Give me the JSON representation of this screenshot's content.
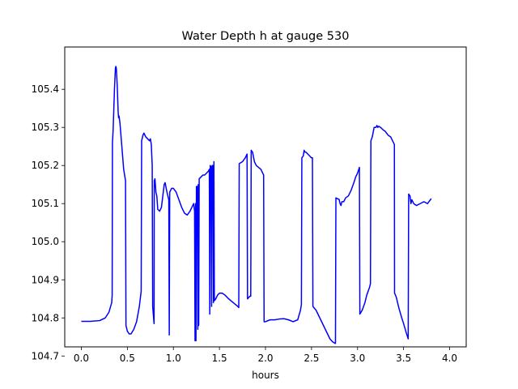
{
  "chart_data": {
    "type": "line",
    "title": "Water Depth h at gauge 530",
    "xlabel": "hours",
    "ylabel": "",
    "xlim": [
      -0.18,
      4.18
    ],
    "ylim": [
      104.724,
      105.511
    ],
    "x_ticks": [
      0.0,
      0.5,
      1.0,
      1.5,
      2.0,
      2.5,
      3.0,
      3.5,
      4.0
    ],
    "x_tick_labels": [
      "0.0",
      "0.5",
      "1.0",
      "1.5",
      "2.0",
      "2.5",
      "3.0",
      "3.5",
      "4.0"
    ],
    "y_ticks": [
      104.7,
      104.8,
      104.9,
      105.0,
      105.1,
      105.2,
      105.3,
      105.4
    ],
    "y_tick_labels": [
      "104.7",
      "104.8",
      "104.9",
      "105.0",
      "105.1",
      "105.2",
      "105.3",
      "105.4"
    ],
    "grid": false,
    "legend": "none",
    "series": [
      {
        "color": "#0000ff",
        "points": [
          [
            0.0,
            104.791
          ],
          [
            0.1,
            104.791
          ],
          [
            0.2,
            104.793
          ],
          [
            0.26,
            104.8
          ],
          [
            0.3,
            104.815
          ],
          [
            0.33,
            104.84
          ],
          [
            0.335,
            104.86
          ],
          [
            0.338,
            105.26
          ],
          [
            0.345,
            105.29
          ],
          [
            0.36,
            105.4
          ],
          [
            0.37,
            105.455
          ],
          [
            0.375,
            105.46
          ],
          [
            0.38,
            105.455
          ],
          [
            0.39,
            105.41
          ],
          [
            0.4,
            105.34
          ],
          [
            0.405,
            105.325
          ],
          [
            0.41,
            105.33
          ],
          [
            0.42,
            105.31
          ],
          [
            0.44,
            105.25
          ],
          [
            0.46,
            105.19
          ],
          [
            0.48,
            105.16
          ],
          [
            0.485,
            104.78
          ],
          [
            0.5,
            104.765
          ],
          [
            0.52,
            104.758
          ],
          [
            0.54,
            104.758
          ],
          [
            0.57,
            104.77
          ],
          [
            0.6,
            104.79
          ],
          [
            0.63,
            104.83
          ],
          [
            0.65,
            104.87
          ],
          [
            0.655,
            105.265
          ],
          [
            0.67,
            105.28
          ],
          [
            0.68,
            105.285
          ],
          [
            0.7,
            105.275
          ],
          [
            0.72,
            105.27
          ],
          [
            0.74,
            105.265
          ],
          [
            0.75,
            105.27
          ],
          [
            0.76,
            105.255
          ],
          [
            0.77,
            105.2
          ],
          [
            0.775,
            104.83
          ],
          [
            0.785,
            104.8
          ],
          [
            0.79,
            104.785
          ],
          [
            0.792,
            105.16
          ],
          [
            0.8,
            105.165
          ],
          [
            0.81,
            105.13
          ],
          [
            0.82,
            105.12
          ],
          [
            0.83,
            105.085
          ],
          [
            0.85,
            105.08
          ],
          [
            0.87,
            105.09
          ],
          [
            0.89,
            105.13
          ],
          [
            0.9,
            105.15
          ],
          [
            0.91,
            105.155
          ],
          [
            0.93,
            105.13
          ],
          [
            0.95,
            105.11
          ],
          [
            0.955,
            104.755
          ],
          [
            0.96,
            105.13
          ],
          [
            0.98,
            105.14
          ],
          [
            1.0,
            105.14
          ],
          [
            1.03,
            105.13
          ],
          [
            1.06,
            105.11
          ],
          [
            1.09,
            105.09
          ],
          [
            1.12,
            105.075
          ],
          [
            1.15,
            105.07
          ],
          [
            1.18,
            105.08
          ],
          [
            1.2,
            105.09
          ],
          [
            1.22,
            105.1
          ],
          [
            1.23,
            105.08
          ],
          [
            1.235,
            104.74
          ],
          [
            1.24,
            105.1
          ],
          [
            1.245,
            104.74
          ],
          [
            1.25,
            105.145
          ],
          [
            1.26,
            105.145
          ],
          [
            1.265,
            104.77
          ],
          [
            1.27,
            105.15
          ],
          [
            1.275,
            104.78
          ],
          [
            1.28,
            105.165
          ],
          [
            1.3,
            105.17
          ],
          [
            1.32,
            105.175
          ],
          [
            1.34,
            105.175
          ],
          [
            1.36,
            105.18
          ],
          [
            1.38,
            105.185
          ],
          [
            1.39,
            105.19
          ],
          [
            1.395,
            104.81
          ],
          [
            1.4,
            105.2
          ],
          [
            1.41,
            105.195
          ],
          [
            1.415,
            104.83
          ],
          [
            1.42,
            105.2
          ],
          [
            1.43,
            105.2
          ],
          [
            1.435,
            104.84
          ],
          [
            1.44,
            105.21
          ],
          [
            1.445,
            104.845
          ],
          [
            1.46,
            104.85
          ],
          [
            1.48,
            104.86
          ],
          [
            1.5,
            104.865
          ],
          [
            1.53,
            104.865
          ],
          [
            1.56,
            104.86
          ],
          [
            1.6,
            104.85
          ],
          [
            1.65,
            104.84
          ],
          [
            1.7,
            104.83
          ],
          [
            1.71,
            104.827
          ],
          [
            1.715,
            105.205
          ],
          [
            1.75,
            105.21
          ],
          [
            1.78,
            105.22
          ],
          [
            1.8,
            105.23
          ],
          [
            1.805,
            104.85
          ],
          [
            1.83,
            104.857
          ],
          [
            1.84,
            104.857
          ],
          [
            1.845,
            105.24
          ],
          [
            1.86,
            105.235
          ],
          [
            1.88,
            105.21
          ],
          [
            1.9,
            105.2
          ],
          [
            1.95,
            105.19
          ],
          [
            1.98,
            105.175
          ],
          [
            1.985,
            104.79
          ],
          [
            2.0,
            104.79
          ],
          [
            2.05,
            104.795
          ],
          [
            2.1,
            104.795
          ],
          [
            2.15,
            104.797
          ],
          [
            2.2,
            104.798
          ],
          [
            2.25,
            104.795
          ],
          [
            2.3,
            104.79
          ],
          [
            2.35,
            104.795
          ],
          [
            2.38,
            104.82
          ],
          [
            2.39,
            104.835
          ],
          [
            2.395,
            105.22
          ],
          [
            2.41,
            105.225
          ],
          [
            2.42,
            105.24
          ],
          [
            2.43,
            105.235
          ],
          [
            2.44,
            105.235
          ],
          [
            2.46,
            105.23
          ],
          [
            2.48,
            105.225
          ],
          [
            2.5,
            105.22
          ],
          [
            2.51,
            105.22
          ],
          [
            2.515,
            104.83
          ],
          [
            2.55,
            104.82
          ],
          [
            2.6,
            104.795
          ],
          [
            2.65,
            104.77
          ],
          [
            2.7,
            104.745
          ],
          [
            2.73,
            104.737
          ],
          [
            2.75,
            104.734
          ],
          [
            2.76,
            104.733
          ],
          [
            2.765,
            105.115
          ],
          [
            2.78,
            105.113
          ],
          [
            2.8,
            105.111
          ],
          [
            2.81,
            105.1
          ],
          [
            2.82,
            105.095
          ],
          [
            2.83,
            105.105
          ],
          [
            2.85,
            105.105
          ],
          [
            2.87,
            105.115
          ],
          [
            2.9,
            105.12
          ],
          [
            2.93,
            105.135
          ],
          [
            2.96,
            105.155
          ],
          [
            2.98,
            105.17
          ],
          [
            3.0,
            105.18
          ],
          [
            3.02,
            105.195
          ],
          [
            3.025,
            104.81
          ],
          [
            3.05,
            104.82
          ],
          [
            3.08,
            104.84
          ],
          [
            3.1,
            104.86
          ],
          [
            3.13,
            104.88
          ],
          [
            3.14,
            104.89
          ],
          [
            3.145,
            105.265
          ],
          [
            3.16,
            105.275
          ],
          [
            3.18,
            105.3
          ],
          [
            3.2,
            105.3
          ],
          [
            3.21,
            105.305
          ],
          [
            3.22,
            105.3
          ],
          [
            3.23,
            105.303
          ],
          [
            3.25,
            105.3
          ],
          [
            3.28,
            105.293
          ],
          [
            3.3,
            105.29
          ],
          [
            3.33,
            105.28
          ],
          [
            3.36,
            105.275
          ],
          [
            3.38,
            105.265
          ],
          [
            3.4,
            105.255
          ],
          [
            3.402,
            104.865
          ],
          [
            3.42,
            104.855
          ],
          [
            3.45,
            104.825
          ],
          [
            3.48,
            104.8
          ],
          [
            3.5,
            104.785
          ],
          [
            3.53,
            104.76
          ],
          [
            3.55,
            104.745
          ],
          [
            3.555,
            105.125
          ],
          [
            3.57,
            105.12
          ],
          [
            3.58,
            105.1
          ],
          [
            3.59,
            105.11
          ],
          [
            3.61,
            105.1
          ],
          [
            3.64,
            105.095
          ],
          [
            3.68,
            105.1
          ],
          [
            3.72,
            105.105
          ],
          [
            3.76,
            105.1
          ],
          [
            3.8,
            105.113
          ]
        ]
      }
    ]
  }
}
